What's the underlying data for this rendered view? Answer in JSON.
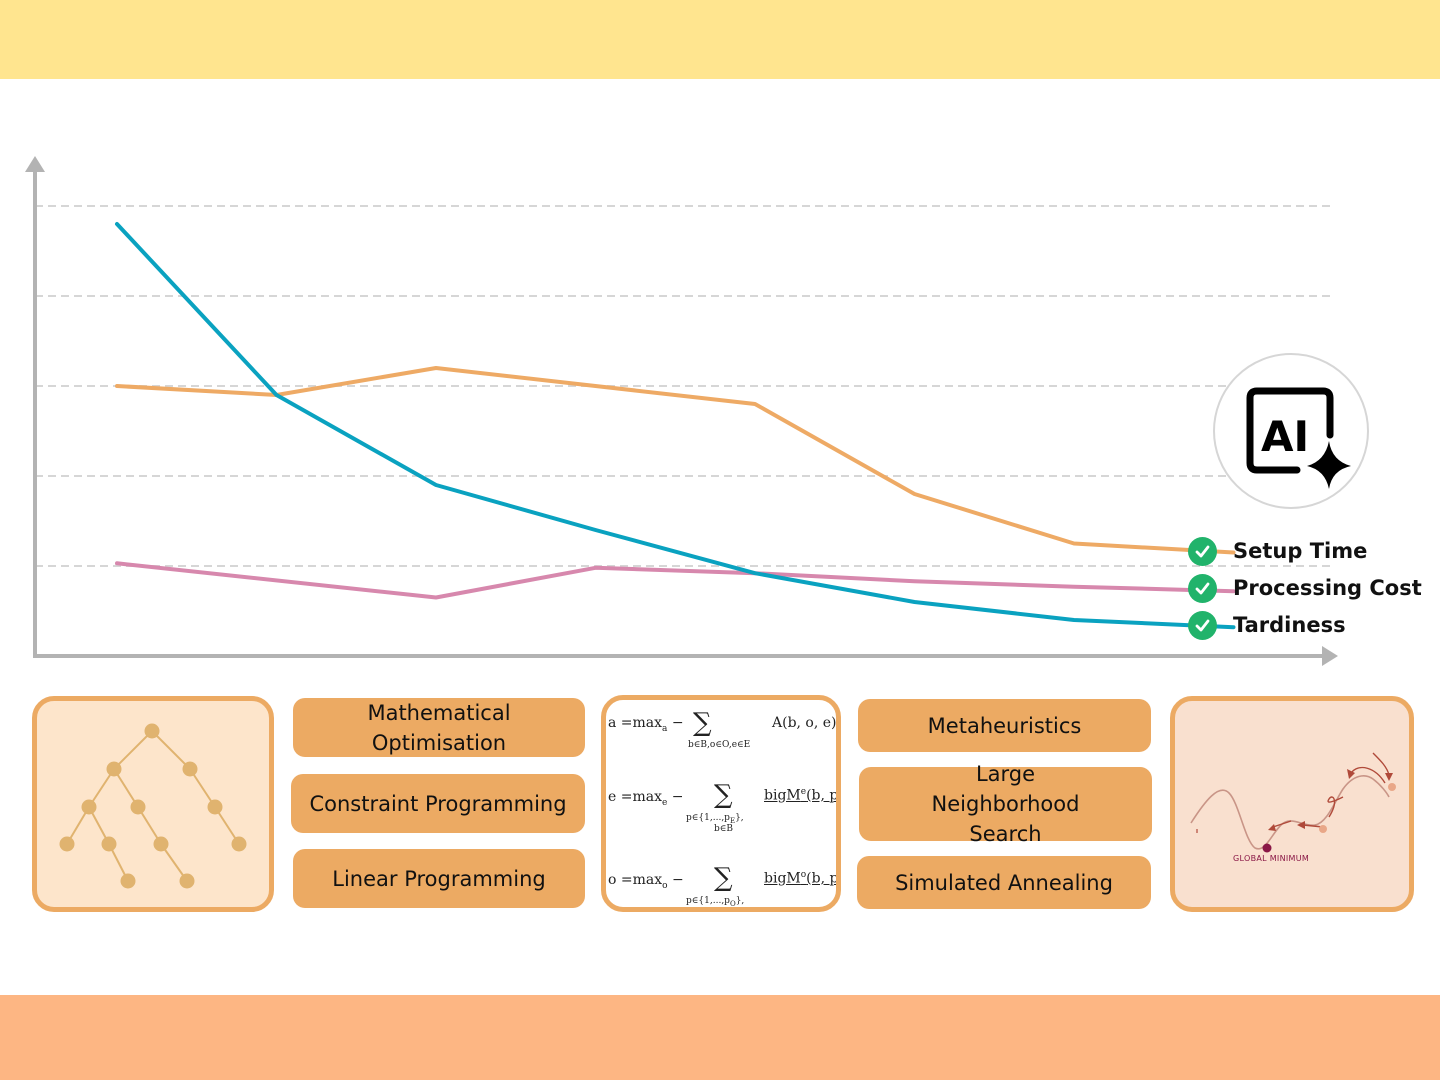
{
  "chart_data": {
    "type": "line",
    "title": "",
    "xlabel": "",
    "ylabel": "",
    "x": [
      1,
      2,
      3,
      4,
      5,
      6,
      7,
      8
    ],
    "xlim": [
      0.5,
      8.5
    ],
    "ylim": [
      0,
      5
    ],
    "grid": true,
    "legend_position": "right",
    "series": [
      {
        "name": "Setup Time",
        "color": "#eeaa65",
        "x": [
          1,
          2,
          3,
          4,
          5,
          6,
          7,
          8
        ],
        "values": [
          3.0,
          2.9,
          3.2,
          3.0,
          2.8,
          1.8,
          1.25,
          1.15
        ]
      },
      {
        "name": "Processing Cost",
        "color": "#d788ad",
        "x": [
          1,
          3,
          4,
          5,
          6,
          7,
          8
        ],
        "values": [
          1.03,
          0.65,
          0.98,
          0.92,
          0.83,
          0.77,
          0.72
        ]
      },
      {
        "name": "Tardiness",
        "color": "#0aa2c0",
        "x": [
          1,
          2,
          3,
          4,
          5,
          6,
          7,
          8
        ],
        "values": [
          4.8,
          2.9,
          1.9,
          1.4,
          0.92,
          0.6,
          0.4,
          0.32
        ]
      }
    ]
  },
  "legend_check_icon": "check-circle-icon",
  "ai_badge": {
    "icon": "ai-sparkle-icon",
    "text": "AI"
  },
  "methods_left": [
    "Mathematical Optimisation",
    "Constraint Programming",
    "Linear Programming"
  ],
  "methods_right": [
    "Metaheuristics",
    "Large Neighborhood Search",
    "Simulated Annealing"
  ],
  "formula_card": {
    "lines": [
      "a =max",
      "a",
      "−",
      "b∈B,o∈O,e∈E",
      "A(b, o, e)",
      "e =max",
      "e",
      "−",
      "p∈{1,...,p",
      "E",
      "},",
      "b∈B",
      "bigM",
      "e",
      "(b, p",
      "o =max",
      "o",
      "−",
      "p∈{1,...,p",
      "O",
      "},",
      "bigM",
      "o",
      "(b, p"
    ]
  },
  "landscape_card": {
    "label": "GLOBAL MINIMUM"
  },
  "colors": {
    "top_band": "#ffe58f",
    "bottom_band": "#fdb683",
    "card_border": "#ecaa63",
    "pill": "#ecaa63",
    "check": "#21b36b",
    "axis": "#b3b3b3",
    "grid": "#d6d6d6"
  }
}
